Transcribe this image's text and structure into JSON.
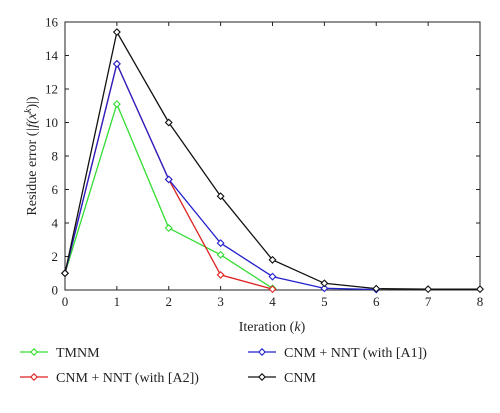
{
  "chart_data": {
    "type": "line",
    "xlabel": "Iteration",
    "xlabel_var": "k",
    "ylabel": "Residue error (",
    "ylabel_math": "|f(x",
    "ylabel_sup": "k",
    "ylabel_end": ")|)",
    "xlim": [
      0,
      8
    ],
    "ylim": [
      0,
      16
    ],
    "xticks": [
      0,
      1,
      2,
      3,
      4,
      5,
      6,
      7,
      8
    ],
    "yticks": [
      0,
      2,
      4,
      6,
      8,
      10,
      12,
      14,
      16
    ],
    "grid": false,
    "legend_position": "bottom",
    "series": [
      {
        "name": "TMNM",
        "color": "#33dd33",
        "x": [
          0,
          1,
          2,
          3,
          4
        ],
        "y": [
          1.0,
          11.1,
          3.7,
          2.1,
          0.1
        ]
      },
      {
        "name": "CNM + NNT (with [A2])",
        "color": "#dd2222",
        "x": [
          0,
          1,
          2,
          3,
          4
        ],
        "y": [
          1.0,
          13.5,
          6.6,
          0.9,
          0.05
        ]
      },
      {
        "name": "CNM + NNT (with [A1])",
        "color": "#2222cc",
        "x": [
          0,
          1,
          2,
          3,
          4,
          5,
          6
        ],
        "y": [
          1.0,
          13.5,
          6.6,
          2.8,
          0.8,
          0.1,
          0.03
        ]
      },
      {
        "name": "CNM",
        "color": "#111111",
        "x": [
          0,
          1,
          2,
          3,
          4,
          5,
          6,
          7,
          8
        ],
        "y": [
          1.0,
          15.4,
          10.0,
          5.6,
          1.8,
          0.4,
          0.08,
          0.05,
          0.05
        ]
      }
    ]
  }
}
